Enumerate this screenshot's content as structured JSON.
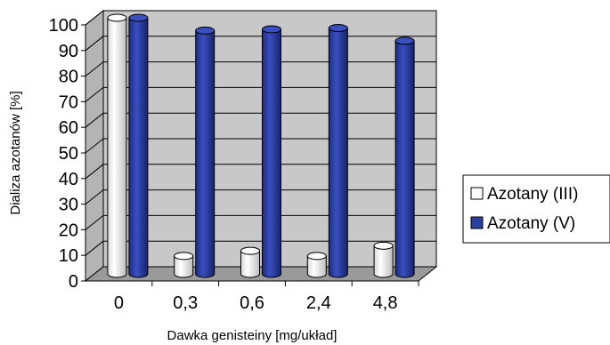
{
  "chart_data": {
    "type": "bar",
    "categories": [
      "0",
      "0,3",
      "0,6",
      "2,4",
      "4,8"
    ],
    "series": [
      {
        "name": "Azotany (III)",
        "values": [
          100,
          7,
          9,
          7,
          11
        ],
        "color": "#ffffff"
      },
      {
        "name": "Azotany (V)",
        "values": [
          100,
          95,
          95.5,
          96,
          91
        ],
        "color": "#2b3fa0"
      }
    ],
    "title": "",
    "xlabel": "Dawka genisteiny [mg/układ]",
    "ylabel": "Dializa azotanów [%]",
    "ylim": [
      0,
      100
    ],
    "yticks": [
      "0",
      "10",
      "20",
      "30",
      "40",
      "50",
      "60",
      "70",
      "80",
      "90",
      "100"
    ],
    "grid": true,
    "legend": "right",
    "style": "3d-cylinder",
    "plot_background": "#c8c8c8"
  }
}
